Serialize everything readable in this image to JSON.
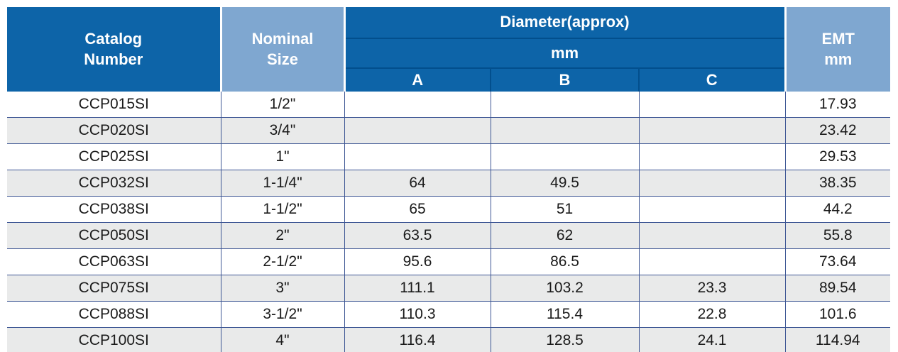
{
  "colors": {
    "header_dark_blue": "#0D64A8",
    "header_light_blue": "#7FA7D0",
    "header_divider_navy": "#024F8D",
    "row_alt_gray": "#E9EAEA",
    "row_divider_navy": "#3D5694",
    "table_bottom_border": "#5C6B9E",
    "header_text": "#FFFFFF",
    "body_text": "#1A1A1A"
  },
  "table": {
    "headers": {
      "catalog_number": "Catalog\nNumber",
      "nominal_size": "Nominal\nSize",
      "diameter_group": "Diameter(approx)",
      "unit": "mm",
      "col_a": "A",
      "col_b": "B",
      "col_c": "C",
      "emt": "EMT\nmm"
    },
    "rows": [
      {
        "catalog": "CCP015SI",
        "nominal": "1/2\"",
        "a": "",
        "b": "",
        "c": "",
        "emt": "17.93"
      },
      {
        "catalog": "CCP020SI",
        "nominal": "3/4\"",
        "a": "",
        "b": "",
        "c": "",
        "emt": "23.42"
      },
      {
        "catalog": "CCP025SI",
        "nominal": "1\"",
        "a": "",
        "b": "",
        "c": "",
        "emt": "29.53"
      },
      {
        "catalog": "CCP032SI",
        "nominal": "1-1/4\"",
        "a": "64",
        "b": "49.5",
        "c": "",
        "emt": "38.35"
      },
      {
        "catalog": "CCP038SI",
        "nominal": "1-1/2\"",
        "a": "65",
        "b": "51",
        "c": "",
        "emt": "44.2"
      },
      {
        "catalog": "CCP050SI",
        "nominal": "2\"",
        "a": "63.5",
        "b": "62",
        "c": "",
        "emt": "55.8"
      },
      {
        "catalog": "CCP063SI",
        "nominal": "2-1/2\"",
        "a": "95.6",
        "b": "86.5",
        "c": "",
        "emt": "73.64"
      },
      {
        "catalog": "CCP075SI",
        "nominal": "3\"",
        "a": "111.1",
        "b": "103.2",
        "c": "23.3",
        "emt": "89.54"
      },
      {
        "catalog": "CCP088SI",
        "nominal": "3-1/2\"",
        "a": "110.3",
        "b": "115.4",
        "c": "22.8",
        "emt": "101.6"
      },
      {
        "catalog": "CCP100SI",
        "nominal": "4\"",
        "a": "116.4",
        "b": "128.5",
        "c": "24.1",
        "emt": "114.94"
      }
    ]
  },
  "chart_data": {
    "type": "table",
    "columns": [
      "Catalog Number",
      "Nominal Size",
      "Diameter(approx) mm A",
      "Diameter(approx) mm B",
      "Diameter(approx) mm C",
      "EMT mm"
    ],
    "rows": [
      [
        "CCP015SI",
        "1/2\"",
        null,
        null,
        null,
        17.93
      ],
      [
        "CCP020SI",
        "3/4\"",
        null,
        null,
        null,
        23.42
      ],
      [
        "CCP025SI",
        "1\"",
        null,
        null,
        null,
        29.53
      ],
      [
        "CCP032SI",
        "1-1/4\"",
        64,
        49.5,
        null,
        38.35
      ],
      [
        "CCP038SI",
        "1-1/2\"",
        65,
        51,
        null,
        44.2
      ],
      [
        "CCP050SI",
        "2\"",
        63.5,
        62,
        null,
        55.8
      ],
      [
        "CCP063SI",
        "2-1/2\"",
        95.6,
        86.5,
        null,
        73.64
      ],
      [
        "CCP075SI",
        "3\"",
        111.1,
        103.2,
        23.3,
        89.54
      ],
      [
        "CCP088SI",
        "3-1/2\"",
        110.3,
        115.4,
        22.8,
        101.6
      ],
      [
        "CCP100SI",
        "4\"",
        116.4,
        128.5,
        24.1,
        114.94
      ]
    ]
  }
}
